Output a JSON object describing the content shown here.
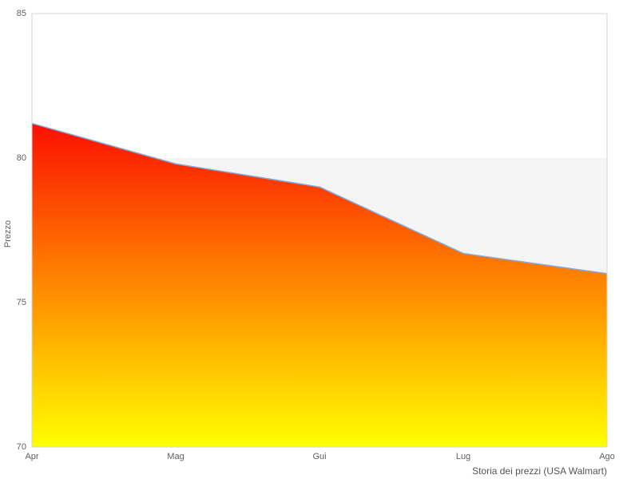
{
  "chart_data": {
    "type": "area",
    "categories": [
      "Apr",
      "Mag",
      "Gui",
      "Lug",
      "Ago"
    ],
    "values": [
      81.2,
      79.8,
      79.0,
      76.7,
      76.0
    ],
    "title": "",
    "xlabel": "Storia dei prezzi (USA Walmart)",
    "ylabel": "Prezzo",
    "ylim": [
      70,
      85
    ],
    "yticks": [
      70,
      75,
      80,
      85
    ],
    "grid": true,
    "legend": false,
    "band": {
      "from": 75,
      "to": 80,
      "color": "#f5f5f5"
    },
    "colors": {
      "line": "#84a9da",
      "gradient_top": "#fb0f00",
      "gradient_mid": "#ff8800",
      "gradient_bottom": "#ffff00",
      "axis_line": "#d6d6d6",
      "tick_text": "#606060",
      "plot_background": "#ffffff"
    }
  }
}
